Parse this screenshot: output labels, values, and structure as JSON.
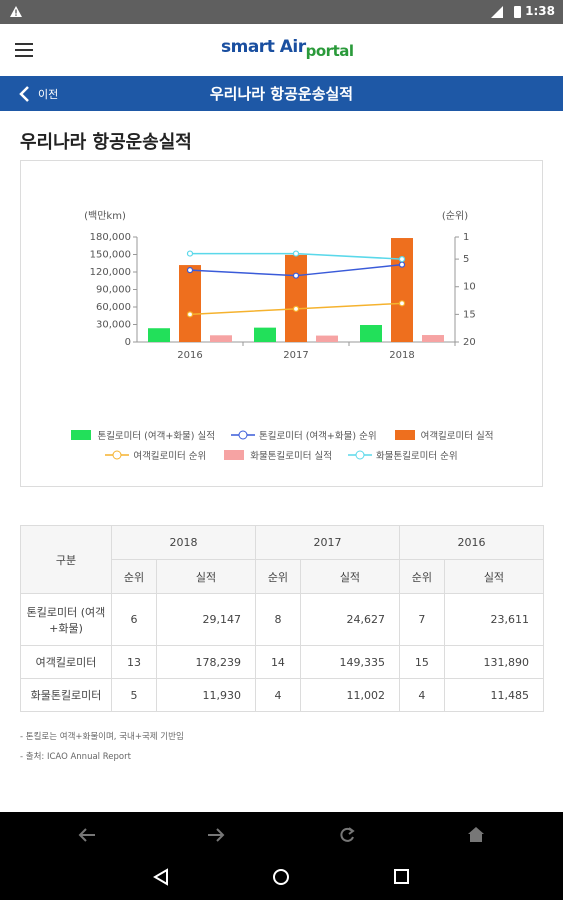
{
  "status_bar": {
    "time": "1:38"
  },
  "header": {
    "logo": [
      "smart",
      "Air",
      "portal"
    ]
  },
  "nav": {
    "back": "이전",
    "title": "우리나라 항공운송실적"
  },
  "page_title": "우리나라 항공운송실적",
  "chart_data": {
    "type": "combo",
    "y_label": "(백만km)",
    "y2_label": "(순위)",
    "categories": [
      "2016",
      "2017",
      "2018"
    ],
    "series": [
      {
        "name": "톤킬로미터 (여객+화물) 실적",
        "type": "bar",
        "color": "#22e05a",
        "values": [
          23611,
          24627,
          29147
        ]
      },
      {
        "name": "톤킬로미터 (여객+화물) 순위",
        "type": "line",
        "axis": "y2",
        "color": "#3a5bd9",
        "values": [
          7,
          8,
          6
        ]
      },
      {
        "name": "여객킬로미터 실적",
        "type": "bar",
        "color": "#ee6f1e",
        "values": [
          131890,
          149335,
          178239
        ]
      },
      {
        "name": "여객킬로미터 순위",
        "type": "line",
        "axis": "y2",
        "color": "#f5b22e",
        "values": [
          15,
          14,
          13
        ]
      },
      {
        "name": "화물톤킬로미터 실적",
        "type": "bar",
        "color": "#f6a3a3",
        "values": [
          11485,
          11002,
          11930
        ]
      },
      {
        "name": "화물톤킬로미터 순위",
        "type": "line",
        "axis": "y2",
        "color": "#5ad8ea",
        "values": [
          4,
          4,
          5
        ]
      }
    ],
    "ylim": [
      0,
      180000
    ],
    "yticks": [
      0,
      {
        "value": 30000,
        "label": "30,000"
      },
      {
        "value": 60000,
        "label": "60,000"
      },
      {
        "value": 90000,
        "label": "90,000"
      },
      {
        "value": 120000,
        "label": "120,000"
      },
      {
        "value": 150000,
        "label": "150,000"
      },
      {
        "value": 180000,
        "label": "180,000"
      }
    ],
    "y2lim": [
      1,
      20
    ],
    "y2_inverted": true,
    "y2ticks": [
      1,
      5,
      10,
      15,
      20
    ],
    "grid": false,
    "legend": "bottom"
  },
  "table": {
    "corner": "구분",
    "years": [
      "2018",
      "2017",
      "2016"
    ],
    "subheaders": [
      "순위",
      "실적",
      "순위",
      "실적",
      "순위",
      "실적"
    ],
    "rows": [
      [
        "톤킬로미터 (여객+화물)",
        "6",
        "29,147",
        "8",
        "24,627",
        "7",
        "23,611"
      ],
      [
        "여객킬로미터",
        "13",
        "178,239",
        "14",
        "149,335",
        "15",
        "131,890"
      ],
      [
        "화물톤킬로미터",
        "5",
        "11,930",
        "4",
        "11,002",
        "4",
        "11,485"
      ]
    ]
  },
  "notes": [
    "- 톤킬로는 여객+화물이며, 국내+국제 기반임",
    "- 출처: ICAO Annual Report"
  ]
}
